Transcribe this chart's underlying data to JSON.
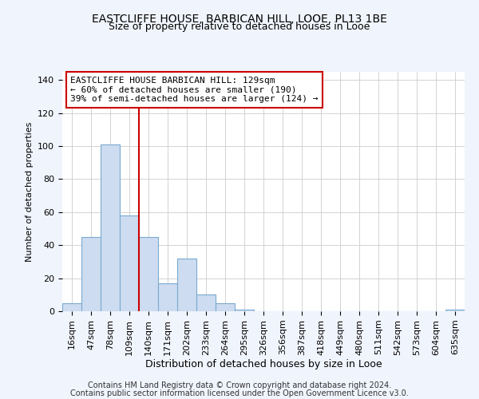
{
  "title1": "EASTCLIFFE HOUSE, BARBICAN HILL, LOOE, PL13 1BE",
  "title2": "Size of property relative to detached houses in Looe",
  "xlabel": "Distribution of detached houses by size in Looe",
  "ylabel": "Number of detached properties",
  "categories": [
    "16sqm",
    "47sqm",
    "78sqm",
    "109sqm",
    "140sqm",
    "171sqm",
    "202sqm",
    "233sqm",
    "264sqm",
    "295sqm",
    "326sqm",
    "356sqm",
    "387sqm",
    "418sqm",
    "449sqm",
    "480sqm",
    "511sqm",
    "542sqm",
    "573sqm",
    "604sqm",
    "635sqm"
  ],
  "values": [
    5,
    45,
    101,
    58,
    45,
    17,
    32,
    10,
    5,
    1,
    0,
    0,
    0,
    0,
    0,
    0,
    0,
    0,
    0,
    0,
    1
  ],
  "bar_color": "#cddcf0",
  "bar_edge_color": "#7aaad0",
  "red_line_x": 4,
  "annotation_text": "EASTCLIFFE HOUSE BARBICAN HILL: 129sqm\n← 60% of detached houses are smaller (190)\n39% of semi-detached houses are larger (124) →",
  "annotation_box_color": "#ffffff",
  "annotation_box_edge": "#cc0000",
  "ylim": [
    0,
    145
  ],
  "yticks": [
    0,
    20,
    40,
    60,
    80,
    100,
    120,
    140
  ],
  "footer_line1": "Contains HM Land Registry data © Crown copyright and database right 2024.",
  "footer_line2": "Contains public sector information licensed under the Open Government Licence v3.0.",
  "bg_color": "#f0f4fc",
  "plot_bg_color": "#ffffff",
  "grid_color": "#cccccc",
  "title_fontsize": 10,
  "subtitle_fontsize": 9,
  "annotation_fontsize": 8,
  "footer_fontsize": 7,
  "ylabel_fontsize": 8,
  "xlabel_fontsize": 9,
  "tick_fontsize": 8
}
